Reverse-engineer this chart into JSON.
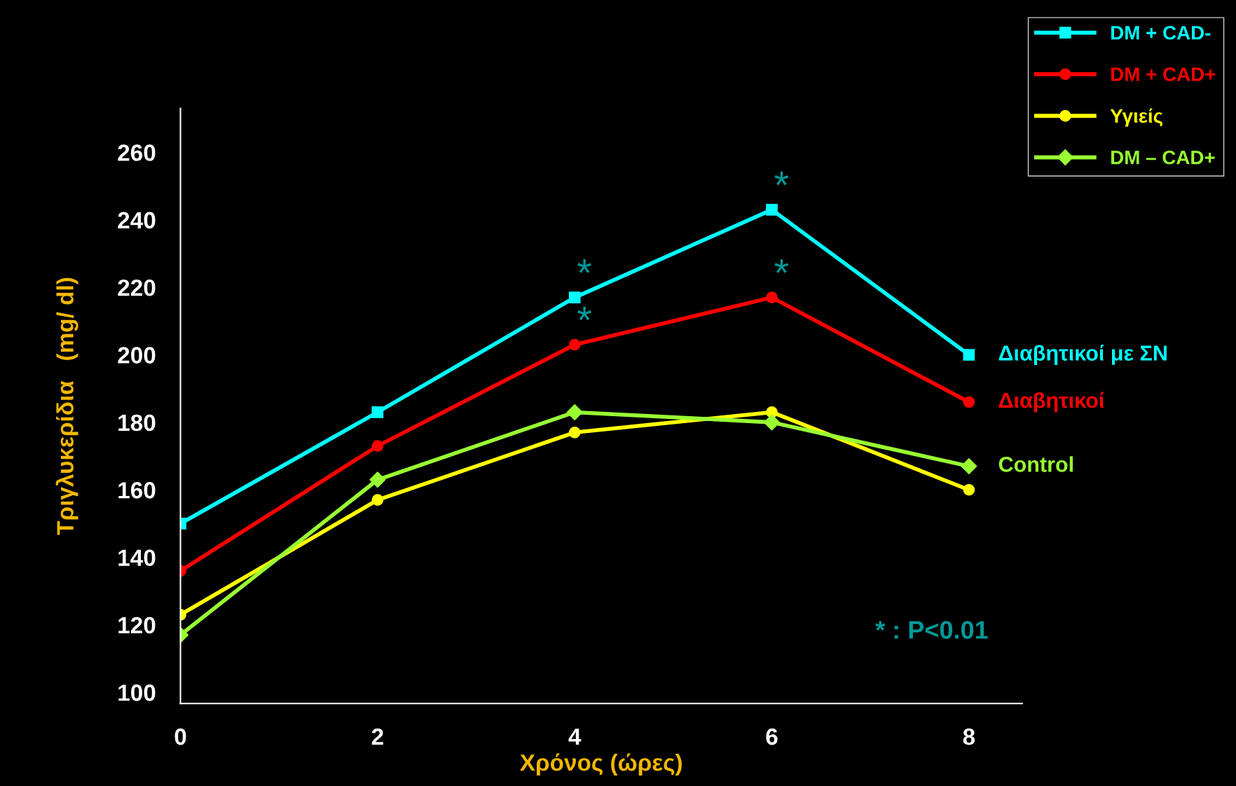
{
  "chart_data": {
    "type": "line",
    "xlabel": "Χρόνος (ώρες)",
    "ylabel": "Τριγλυκερίδια   (mg/ dl)",
    "categories": [
      "0",
      "2",
      "4",
      "6",
      "8"
    ],
    "series": [
      {
        "name": "DM + CAD-",
        "color": "#00ffff",
        "marker": "square",
        "values": [
          150,
          183,
          217,
          243,
          200
        ]
      },
      {
        "name": "DM + CAD+",
        "color": "#ff0000",
        "marker": "circle",
        "values": [
          136,
          173,
          203,
          217,
          186
        ]
      },
      {
        "name": "Υγιείς",
        "color": "#ffff00",
        "marker": "circle",
        "values": [
          123,
          157,
          177,
          183,
          160
        ]
      },
      {
        "name": "DM – CAD+",
        "color": "#99ff33",
        "marker": "diamond",
        "values": [
          117,
          163,
          183,
          180,
          167
        ]
      }
    ],
    "ylim": [
      96.7,
      273
    ],
    "yticks": [
      100,
      120,
      140,
      160,
      180,
      200,
      220,
      240,
      260
    ],
    "annotations": [
      {
        "text": "*",
        "x": "4",
        "y": 217
      },
      {
        "text": "*",
        "x": "4",
        "y": 203
      },
      {
        "text": "*",
        "x": "6",
        "y": 243
      },
      {
        "text": "*",
        "x": "6",
        "y": 217
      },
      {
        "text": "Διαβητικοί με ΣΝ",
        "x": "8",
        "y": 200
      },
      {
        "text": "Διαβητικοί",
        "x": "8",
        "y": 186
      },
      {
        "text": "Control",
        "x": "8",
        "y": 167
      },
      "* : P<0.01"
    ],
    "legend": "top right",
    "grid": false,
    "line_style": "solid"
  }
}
